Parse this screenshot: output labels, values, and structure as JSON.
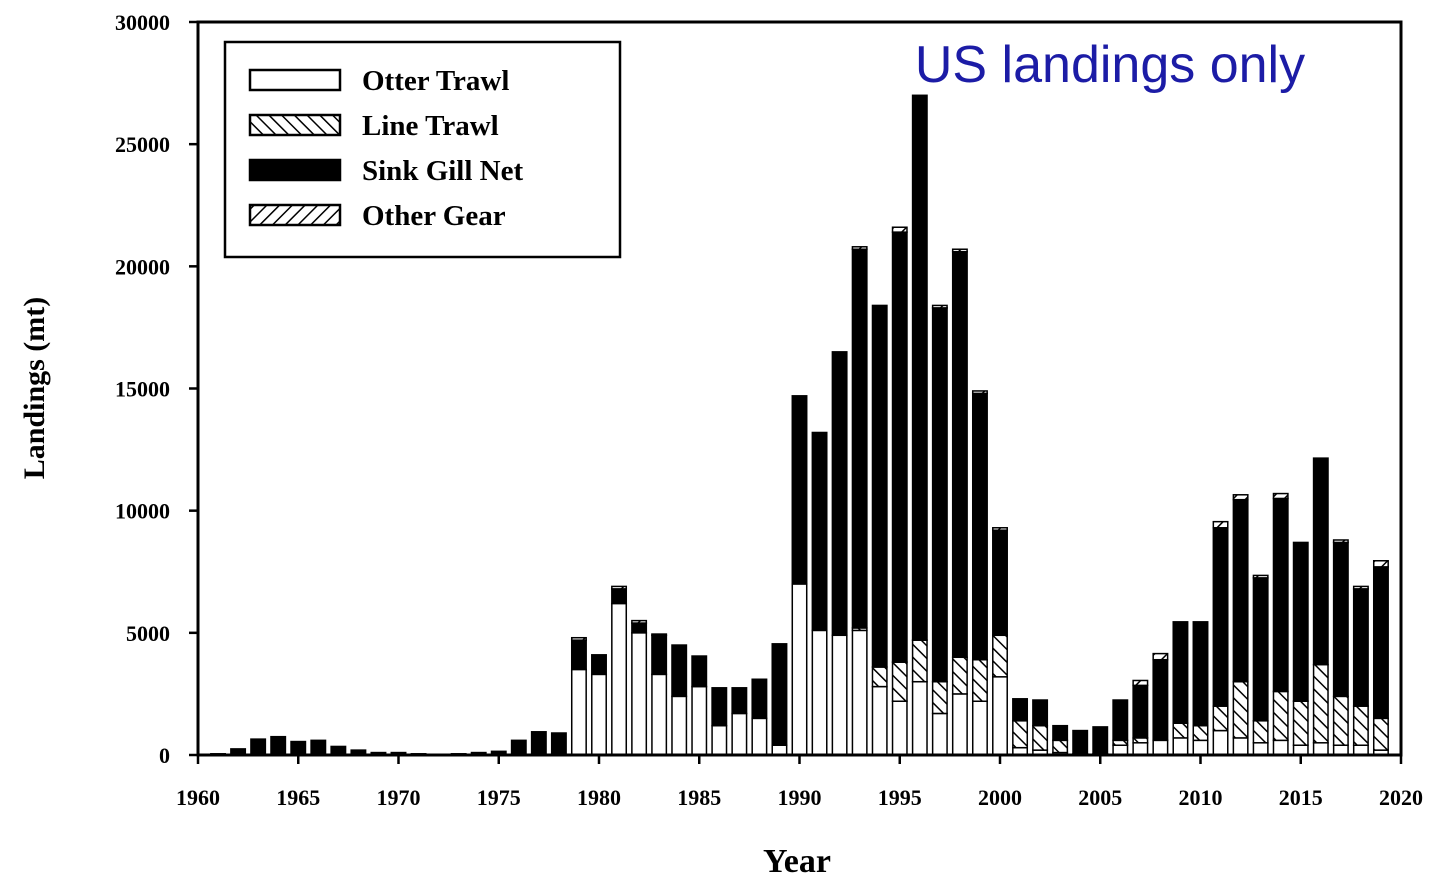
{
  "chart_data": {
    "type": "stacked-bar",
    "x_label": "Year",
    "y_label": "Landings (mt)",
    "annotation": "US landings only",
    "x": [
      1960,
      1961,
      1962,
      1963,
      1964,
      1965,
      1966,
      1967,
      1968,
      1969,
      1970,
      1971,
      1972,
      1973,
      1974,
      1975,
      1976,
      1977,
      1978,
      1979,
      1980,
      1981,
      1982,
      1983,
      1984,
      1985,
      1986,
      1987,
      1988,
      1989,
      1990,
      1991,
      1992,
      1993,
      1994,
      1995,
      1996,
      1997,
      1998,
      1999,
      2000,
      2001,
      2002,
      2003,
      2004,
      2005,
      2006,
      2007,
      2008,
      2009,
      2010,
      2011,
      2012,
      2013,
      2014,
      2015,
      2016,
      2017,
      2018,
      2019
    ],
    "series": [
      {
        "name": "Otter Trawl",
        "color": "#ffffff",
        "hatch": "none",
        "values": [
          0,
          0,
          0,
          0,
          0,
          0,
          0,
          0,
          0,
          0,
          0,
          0,
          0,
          0,
          0,
          0,
          0,
          0,
          0,
          3500,
          3300,
          6200,
          5000,
          3300,
          2400,
          2800,
          1200,
          1700,
          1500,
          400,
          7000,
          5100,
          4900,
          5100,
          2800,
          2200,
          3000,
          1700,
          2500,
          2200,
          3200,
          300,
          200,
          100,
          50,
          50,
          400,
          500,
          600,
          700,
          600,
          1000,
          700,
          500,
          600,
          400,
          500,
          400,
          400,
          200
        ]
      },
      {
        "name": "Line Trawl",
        "color": "#ffffff",
        "hatch": "backslash",
        "values": [
          0,
          0,
          0,
          0,
          0,
          0,
          0,
          0,
          0,
          0,
          0,
          0,
          0,
          0,
          0,
          0,
          0,
          0,
          0,
          0,
          0,
          0,
          0,
          0,
          0,
          0,
          0,
          0,
          0,
          0,
          0,
          0,
          0,
          100,
          800,
          1600,
          1700,
          1300,
          1500,
          1700,
          1700,
          1100,
          1000,
          500,
          0,
          0,
          200,
          200,
          0,
          600,
          600,
          1000,
          2300,
          900,
          2000,
          1800,
          3200,
          2000,
          1600,
          1300
        ]
      },
      {
        "name": "Sink Gill Net",
        "color": "#000000",
        "hatch": "none",
        "values": [
          0,
          50,
          250,
          650,
          750,
          550,
          600,
          350,
          200,
          100,
          100,
          50,
          30,
          50,
          100,
          150,
          600,
          950,
          900,
          1200,
          800,
          600,
          400,
          1600,
          2100,
          1250,
          1550,
          1050,
          1600,
          4150,
          7700,
          8100,
          11600,
          15500,
          14800,
          17600,
          22300,
          15300,
          16600,
          10900,
          4300,
          900,
          1050,
          600,
          950,
          1100,
          1650,
          2150,
          3300,
          4150,
          4250,
          7300,
          7450,
          5850,
          7900,
          6500,
          8450,
          6300,
          4800,
          6200
        ]
      },
      {
        "name": "Other Gear",
        "color": "#ffffff",
        "hatch": "slash",
        "values": [
          0,
          0,
          0,
          0,
          0,
          0,
          0,
          0,
          0,
          0,
          0,
          0,
          0,
          0,
          0,
          0,
          0,
          0,
          0,
          100,
          0,
          100,
          100,
          50,
          0,
          0,
          0,
          0,
          0,
          0,
          0,
          0,
          0,
          100,
          0,
          200,
          0,
          100,
          100,
          100,
          100,
          0,
          0,
          0,
          0,
          0,
          0,
          200,
          250,
          0,
          0,
          250,
          200,
          100,
          200,
          0,
          0,
          100,
          100,
          250
        ]
      }
    ],
    "xlim": [
      1960,
      2020
    ],
    "xticks": [
      1960,
      1965,
      1970,
      1975,
      1980,
      1985,
      1990,
      1995,
      2000,
      2005,
      2010,
      2015,
      2020
    ],
    "ylim": [
      0,
      30000
    ],
    "yticks": [
      0,
      5000,
      10000,
      15000,
      20000,
      25000,
      30000
    ],
    "legend": "upper-left"
  }
}
